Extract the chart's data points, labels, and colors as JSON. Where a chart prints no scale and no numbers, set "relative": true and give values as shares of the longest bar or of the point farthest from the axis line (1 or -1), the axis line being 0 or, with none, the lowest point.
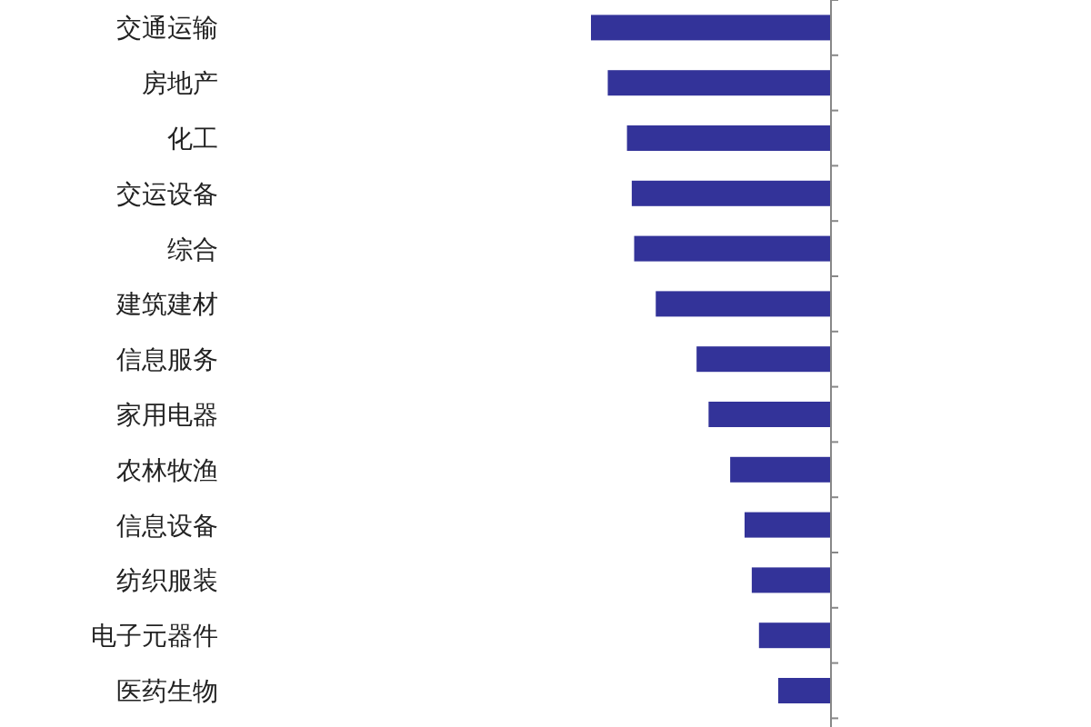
{
  "chart_data": {
    "type": "bar",
    "orientation": "horizontal",
    "relative": true,
    "color": "#333399",
    "categories": [
      "交通运输",
      "房地产",
      "化工",
      "交运设备",
      "综合",
      "建筑建材",
      "信息服务",
      "家用电器",
      "农林牧渔",
      "信息设备",
      "纺织服装",
      "电子元器件",
      "医药生物"
    ],
    "values": [
      -1,
      -0.93,
      -0.85,
      -0.83,
      -0.82,
      -0.73,
      -0.56,
      -0.51,
      -0.42,
      -0.36,
      -0.33,
      -0.3,
      -0.22
    ]
  }
}
